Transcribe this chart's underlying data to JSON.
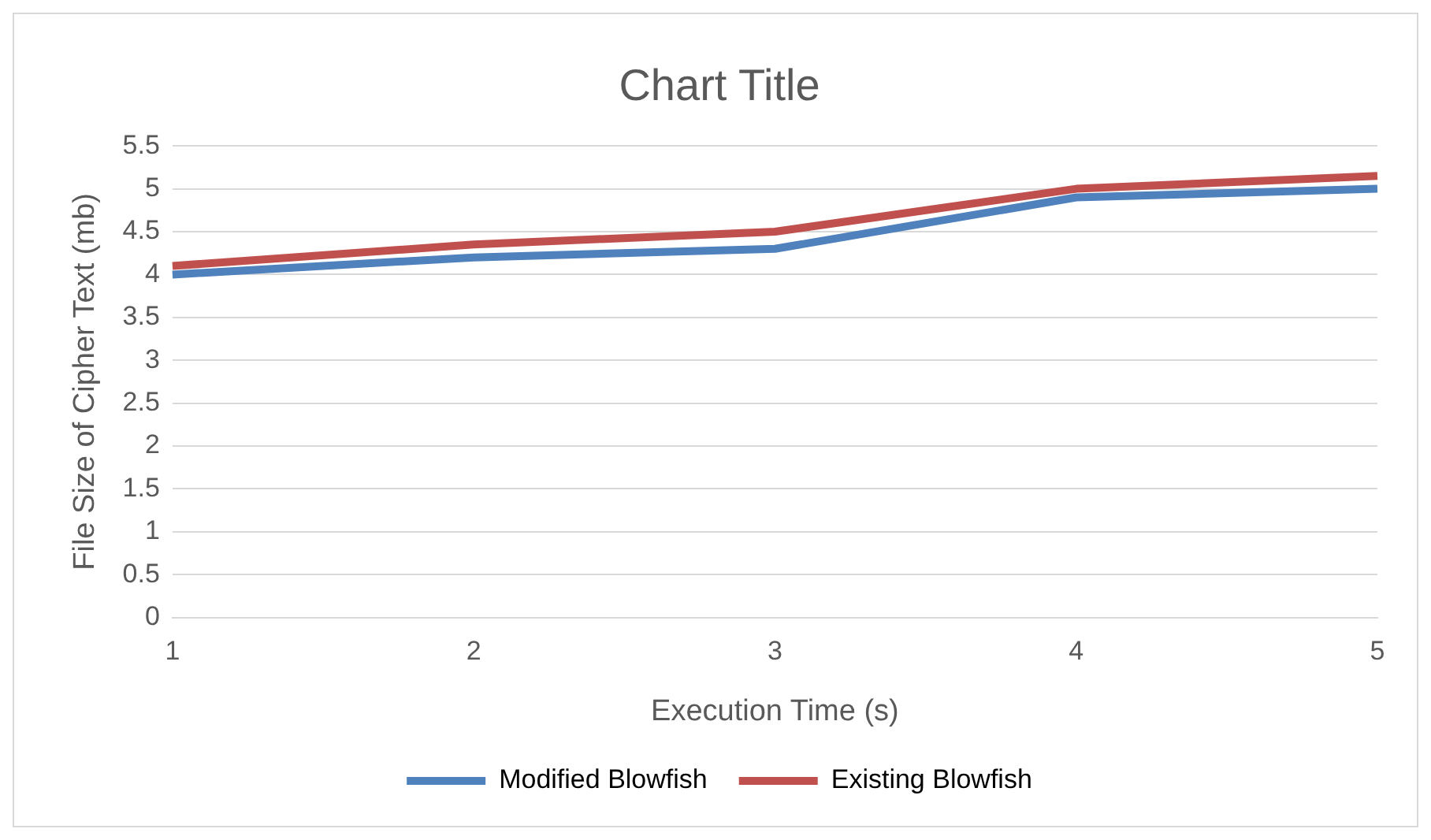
{
  "chart_data": {
    "type": "line",
    "title": "Chart Title",
    "xlabel": "Execution Time (s)",
    "ylabel": "File Size of Cipher Text (mb)",
    "categories": [
      "1",
      "2",
      "3",
      "4",
      "5"
    ],
    "series": [
      {
        "name": "Modified Blowfish",
        "color": "#4f81bd",
        "values": [
          4.0,
          4.2,
          4.3,
          4.9,
          5.0
        ]
      },
      {
        "name": "Existing Blowfish",
        "color": "#c0504d",
        "values": [
          4.1,
          4.35,
          4.5,
          5.0,
          5.15
        ]
      }
    ],
    "ylim": [
      0,
      5.5
    ],
    "yticks": [
      0,
      0.5,
      1,
      1.5,
      2,
      2.5,
      3,
      3.5,
      4,
      4.5,
      5,
      5.5
    ],
    "grid": "y",
    "legend": "bottom",
    "marker": "none",
    "line_style": "solid"
  }
}
